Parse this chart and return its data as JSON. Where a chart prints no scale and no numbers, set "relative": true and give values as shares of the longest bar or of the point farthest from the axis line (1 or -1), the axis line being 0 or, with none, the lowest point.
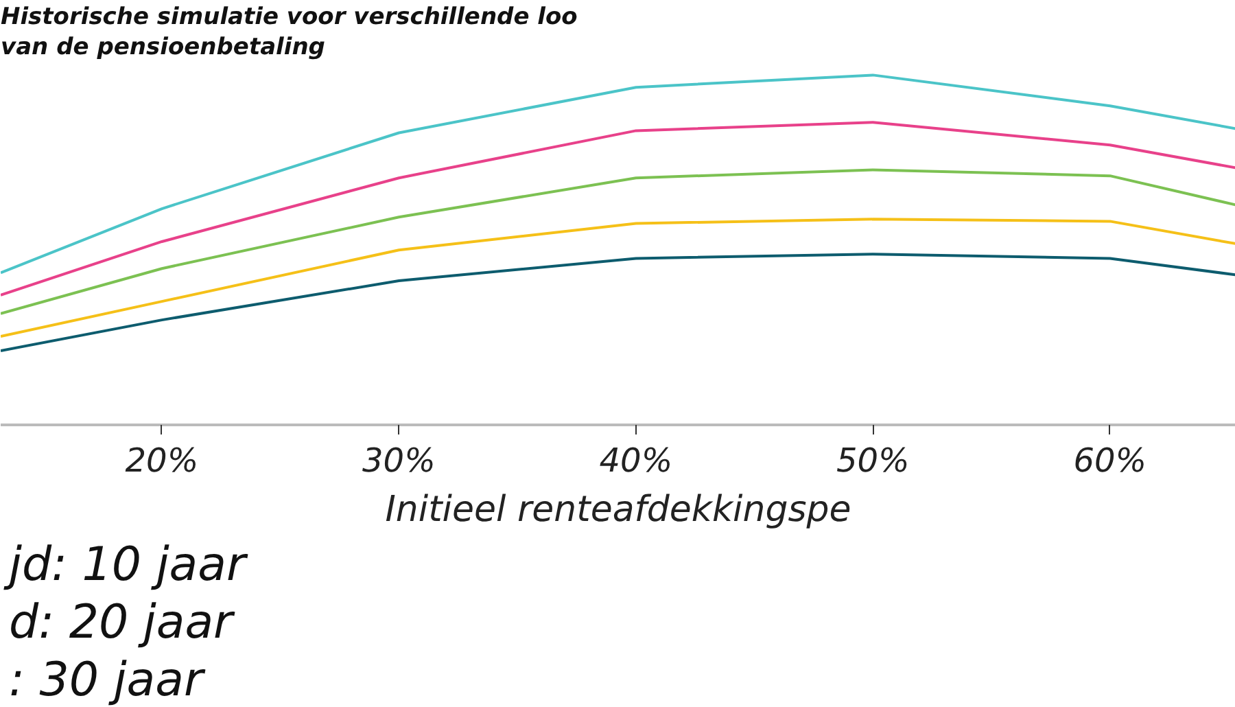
{
  "chart_data": {
    "type": "line",
    "title": "Historische simulatie voor verschillende loo",
    "subtitle": "van de pensioenbetaling",
    "xlabel": "Initieel renteafdekkingspe",
    "relative": true,
    "x": [
      13.2,
      20,
      30,
      40,
      50,
      60,
      65.3
    ],
    "xlim": [
      13.2,
      65.3
    ],
    "xticks": [
      {
        "value": 20,
        "label": "20%"
      },
      {
        "value": 30,
        "label": "30%"
      },
      {
        "value": 40,
        "label": "40%"
      },
      {
        "value": 50,
        "label": "50%"
      },
      {
        "value": 60,
        "label": "60%"
      }
    ],
    "series": [
      {
        "color": "#4bc4c8",
        "values": [
          0.435,
          0.618,
          0.835,
          0.965,
          1.0,
          0.912,
          0.847
        ]
      },
      {
        "color": "#e8418a",
        "values": [
          0.371,
          0.524,
          0.706,
          0.841,
          0.865,
          0.8,
          0.735
        ]
      },
      {
        "color": "#7cc152",
        "values": [
          0.318,
          0.447,
          0.594,
          0.706,
          0.729,
          0.712,
          0.629
        ]
      },
      {
        "color": "#f5c018",
        "values": [
          0.253,
          0.353,
          0.5,
          0.576,
          0.588,
          0.582,
          0.518
        ]
      },
      {
        "color": "#0d5c6e",
        "values": [
          0.212,
          0.3,
          0.412,
          0.476,
          0.488,
          0.476,
          0.429
        ]
      }
    ],
    "annotations": [
      "jd: 10 jaar",
      "d: 20 jaar",
      ": 30 jaar"
    ],
    "line_style": "solid",
    "marker": "none",
    "grid": false
  }
}
